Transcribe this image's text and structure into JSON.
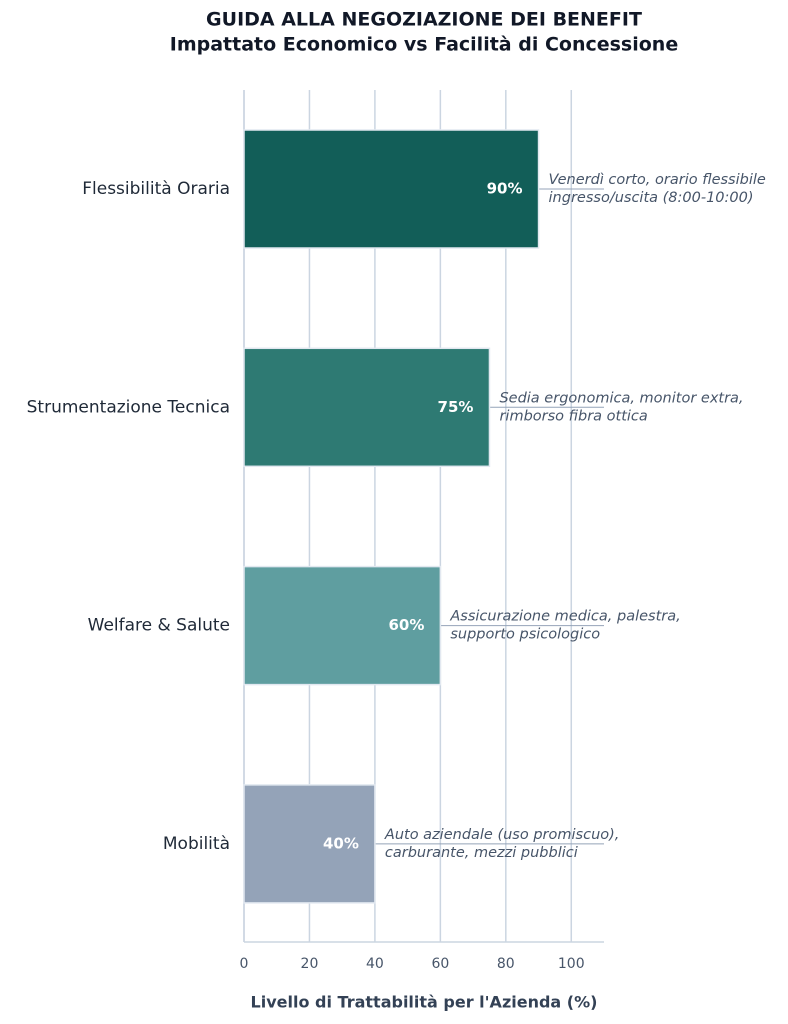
{
  "chart_data": {
    "type": "barh",
    "title": "GUIDA ALLA NEGOZIAZIONE DEI BENEFIT",
    "subtitle": "Impattato Economico vs Facilità di Concessione",
    "xlabel": "Livello di Trattabilità per l'Azienda (%)",
    "categories": [
      "Flessibilità Oraria",
      "Strumentazione Tecnica",
      "Welfare & Salute",
      "Mobilità"
    ],
    "values": [
      90,
      75,
      60,
      40
    ],
    "value_labels": [
      "90%",
      "75%",
      "60%",
      "40%"
    ],
    "colors": [
      "#125e58",
      "#2e7a73",
      "#5f9ea0",
      "#94a3b8"
    ],
    "annotations": [
      [
        "Venerdì corto, orario flessibile",
        "ingresso/uscita (8:00-10:00)"
      ],
      [
        "Sedia ergonomica, monitor extra,",
        "rimborso fibra ottica"
      ],
      [
        "Assicurazione medica, palestra,",
        "supporto psicologico"
      ],
      [
        "Auto aziendale (uso promiscuo),",
        "carburante, mezzi pubblici"
      ]
    ],
    "xlim": [
      0,
      110
    ],
    "xticks": [
      0,
      20,
      40,
      60,
      80,
      100
    ],
    "grid": true
  }
}
